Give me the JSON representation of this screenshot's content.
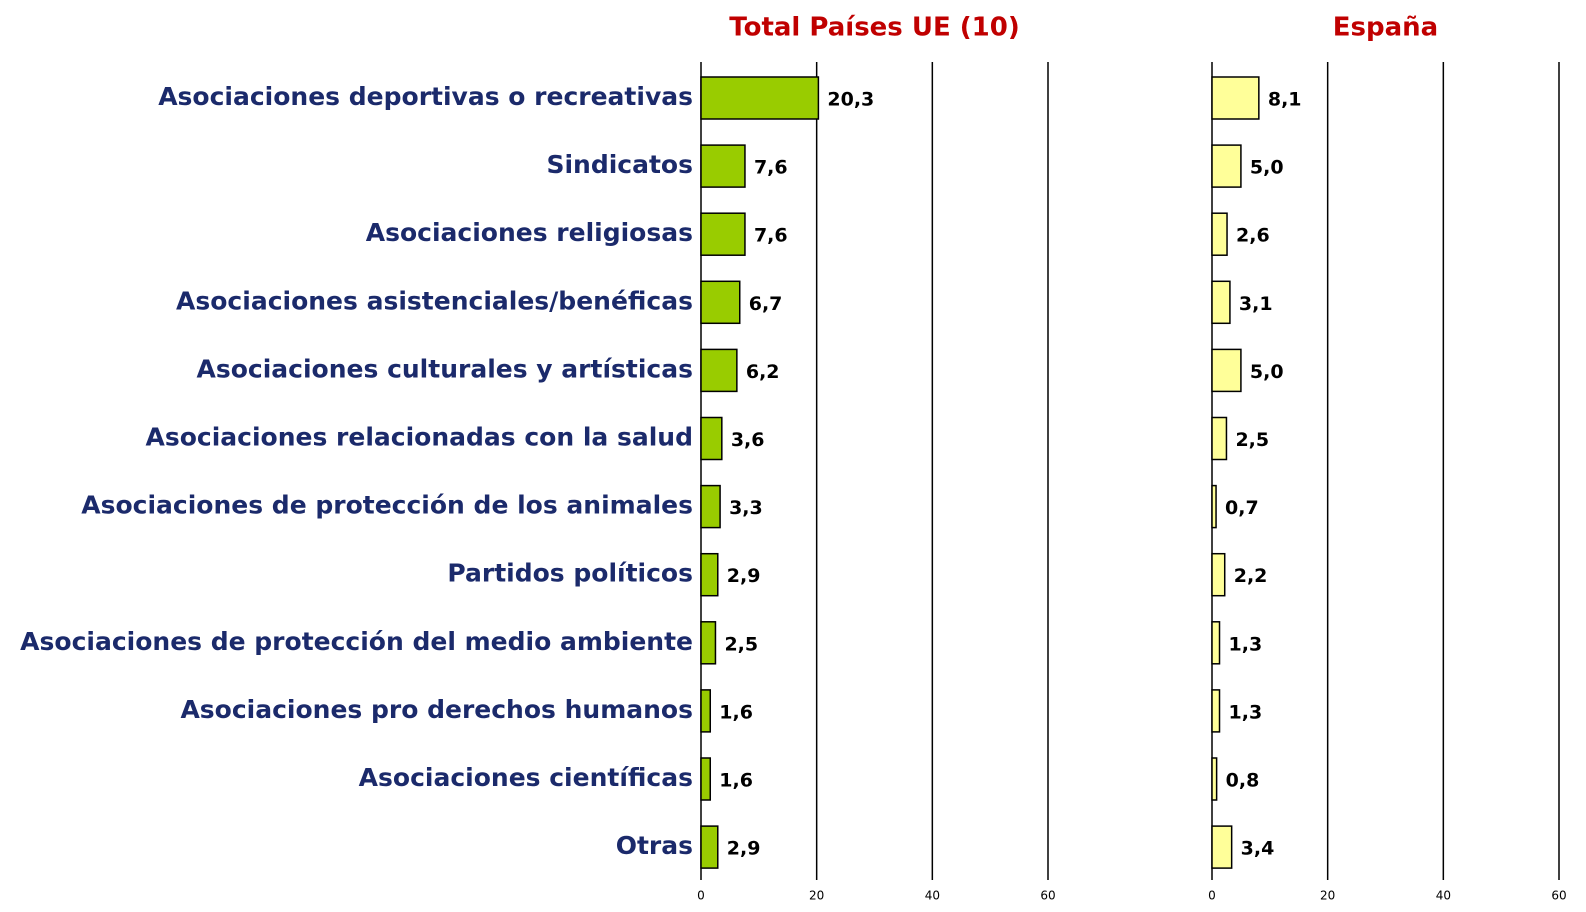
{
  "chart_data": [
    {
      "type": "bar",
      "title": "Total Países UE (10)",
      "categories": [
        "Asociaciones deportivas o recreativas",
        "Sindicatos",
        "Asociaciones religiosas",
        "Asociaciones asistenciales/benéficas",
        "Asociaciones culturales y artísticas",
        "Asociaciones relacionadas con la salud",
        "Asociaciones de protección de los animales",
        "Partidos políticos",
        "Asociaciones de protección del medio ambiente",
        "Asociaciones pro derechos humanos",
        "Asociaciones científicas",
        "Otras"
      ],
      "values": [
        20.3,
        7.6,
        7.6,
        6.7,
        6.2,
        3.6,
        3.3,
        2.9,
        2.5,
        1.6,
        1.6,
        2.9
      ],
      "value_labels": [
        "20,3",
        "7,6",
        "7,6",
        "6,7",
        "6,2",
        "3,6",
        "3,3",
        "2,9",
        "2,5",
        "1,6",
        "1,6",
        "2,9"
      ],
      "color": "#99cc00",
      "xlim": [
        0,
        60
      ],
      "xticks": [
        0,
        20,
        40,
        60
      ],
      "grid": true
    },
    {
      "type": "bar",
      "title": "España",
      "values": [
        8.1,
        5.0,
        2.6,
        3.1,
        5.0,
        2.5,
        0.7,
        2.2,
        1.3,
        1.3,
        0.8,
        3.4
      ],
      "value_labels": [
        "8,1",
        "5,0",
        "2,6",
        "3,1",
        "5,0",
        "2,5",
        "0,7",
        "2,2",
        "1,3",
        "1,3",
        "0,8",
        "3,4"
      ],
      "color": "#ffff99",
      "xlim": [
        0,
        60
      ],
      "xticks": [
        0,
        20,
        40,
        60
      ],
      "grid": true
    }
  ]
}
